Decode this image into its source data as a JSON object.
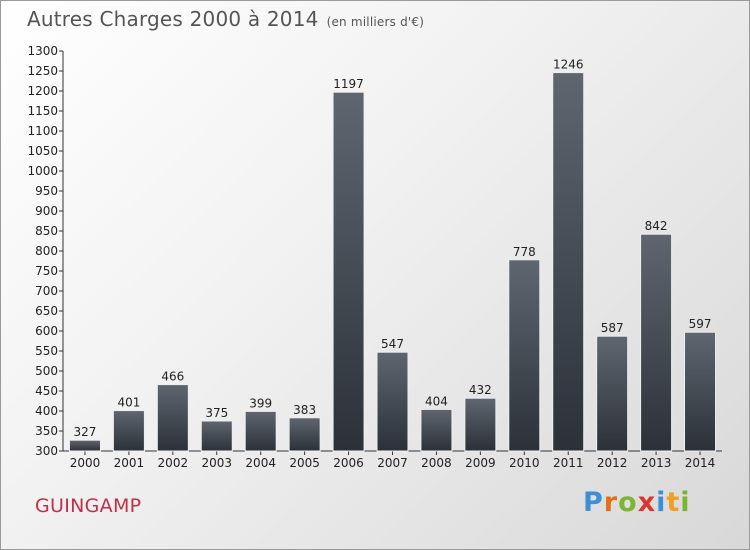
{
  "header": {
    "title": "Autres Charges 2000 à 2014",
    "subtitle": "(en milliers d'€)"
  },
  "footer": {
    "city": "GUINGAMP",
    "brand": "Proxiti"
  },
  "colors": {
    "bar_top": "#5f6670",
    "bar_bottom": "#2c3138",
    "city": "#c0304a",
    "brand_letters": [
      "#3a8fd6",
      "#e0701c",
      "#7cb434",
      "#d8362e",
      "#3a8fd6",
      "#f0a020",
      "#7cb434"
    ]
  },
  "chart_data": {
    "type": "bar",
    "categories": [
      "2000",
      "2001",
      "2002",
      "2003",
      "2004",
      "2005",
      "2006",
      "2007",
      "2008",
      "2009",
      "2010",
      "2011",
      "2012",
      "2013",
      "2014"
    ],
    "values": [
      327,
      401,
      466,
      375,
      399,
      383,
      1197,
      547,
      404,
      432,
      778,
      1246,
      587,
      842,
      597
    ],
    "title": "Autres Charges 2000 à 2014",
    "subtitle": "(en milliers d'€)",
    "xlabel": "",
    "ylabel": "",
    "ylim": [
      300,
      1300
    ],
    "ytick_step": 50,
    "grid": false,
    "legend": "none"
  }
}
